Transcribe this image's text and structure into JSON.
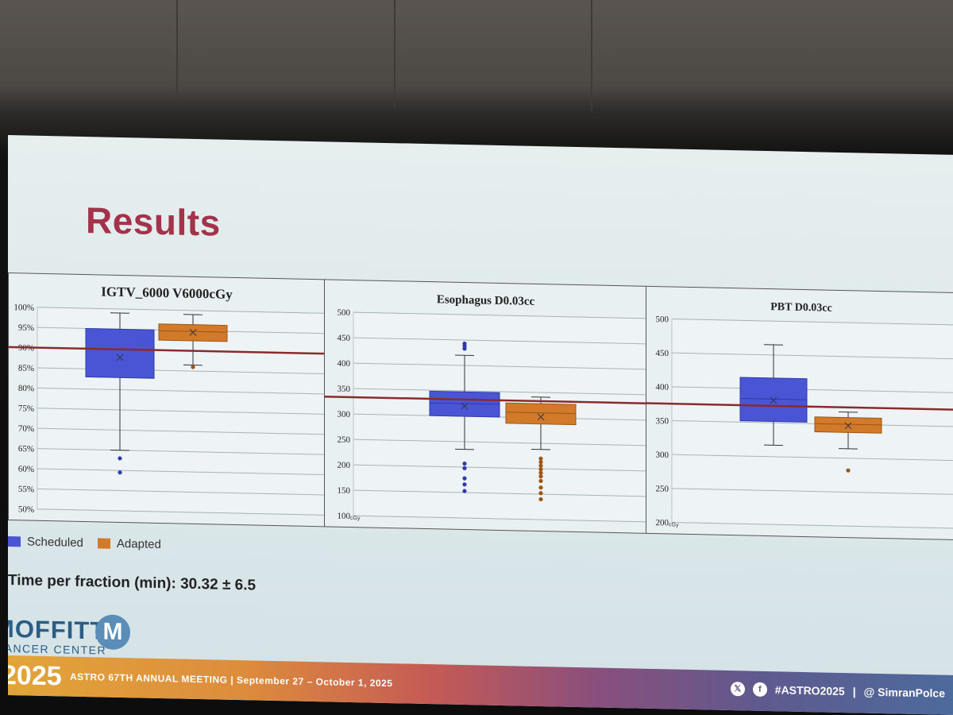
{
  "slide_title": "Results",
  "legend": [
    {
      "label": "Scheduled",
      "color": "#4a55d6"
    },
    {
      "label": "Adapted",
      "color": "#d07a2a"
    }
  ],
  "time_text": "Time per fraction (min): 30.32 ± 6.5",
  "logo": {
    "name": "MOFFITT",
    "subtitle": "CANCER CENTER",
    "mark": "M"
  },
  "banner": {
    "year": "2025",
    "meeting": "ASTRO 67TH ANNUAL MEETING  |  September 27 – October 1, 2025",
    "hashtag": "#ASTRO2025",
    "separator": "|",
    "handle": "@ SimranPolce",
    "icons": [
      "x-icon",
      "facebook-icon"
    ]
  },
  "chart_data": [
    {
      "type": "box",
      "title": "IGTV_6000 V6000cGy",
      "ylim": [
        50,
        100
      ],
      "yticks": [
        50,
        55,
        60,
        65,
        70,
        75,
        80,
        85,
        90,
        95,
        100
      ],
      "ytick_suffix": "%",
      "reference_line": 90,
      "series": [
        {
          "name": "Scheduled",
          "min": 65,
          "q1": 83,
          "median": 90,
          "q3": 95,
          "max": 99,
          "mean": 88,
          "outliers": [
            63,
            59.5
          ]
        },
        {
          "name": "Adapted",
          "min": 86.5,
          "q1": 92.5,
          "median": 94.8,
          "q3": 96.5,
          "max": 99,
          "mean": 94.6,
          "outliers": [
            86
          ]
        }
      ]
    },
    {
      "type": "box",
      "title": "Esophagus D0.03cc",
      "ylim": [
        100,
        500
      ],
      "yticks": [
        100,
        150,
        200,
        250,
        300,
        350,
        400,
        450,
        500
      ],
      "unit_label": "cGy",
      "reference_line": 333,
      "series": [
        {
          "name": "Scheduled",
          "min": 235,
          "q1": 300,
          "median": 325,
          "q3": 348,
          "max": 420,
          "mean": 320,
          "outliers": [
            443,
            438,
            433,
            207,
            198,
            178,
            166,
            153
          ]
        },
        {
          "name": "Adapted",
          "min": 238,
          "q1": 288,
          "median": 310,
          "q3": 328,
          "max": 341,
          "mean": 302,
          "outliers": [
            220,
            213,
            206,
            199,
            192,
            185,
            176,
            163,
            152,
            140
          ]
        }
      ]
    },
    {
      "type": "box",
      "title": "PBT D0.03cc",
      "ylim": [
        200,
        500
      ],
      "yticks": [
        200,
        250,
        300,
        350,
        400,
        450,
        500
      ],
      "unit_label": "cGy",
      "reference_line": 375,
      "series": [
        {
          "name": "Scheduled",
          "min": 317,
          "q1": 352,
          "median": 385,
          "q3": 416,
          "max": 465,
          "mean": 383,
          "outliers": []
        },
        {
          "name": "Adapted",
          "min": 314,
          "q1": 338,
          "median": 350,
          "q3": 360,
          "max": 368,
          "mean": 348,
          "outliers": [
            282
          ]
        }
      ]
    }
  ]
}
